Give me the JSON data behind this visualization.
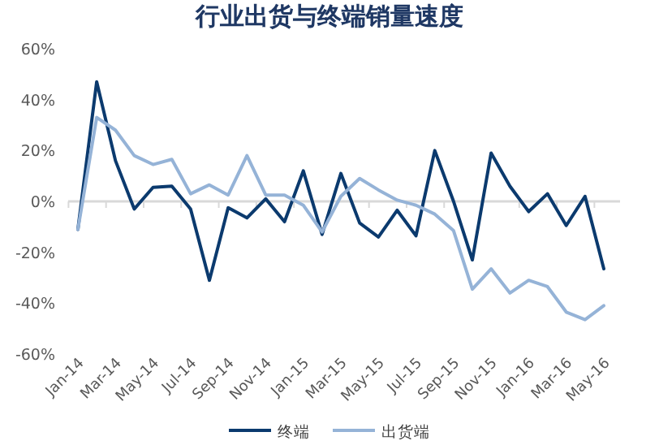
{
  "chart_data": {
    "type": "line",
    "title": "行业出货与终端销量速度",
    "categories": [
      "Jan-14",
      null,
      "Mar-14",
      null,
      "May-14",
      null,
      "Jul-14",
      null,
      "Sep-14",
      null,
      "Nov-14",
      null,
      "Jan-15",
      null,
      "Mar-15",
      null,
      "May-15",
      null,
      "Jul-15",
      null,
      "Sep-15",
      null,
      "Nov-15",
      null,
      "Jan-16",
      null,
      "Mar-16",
      null,
      "May-16"
    ],
    "series": [
      {
        "name": "终端",
        "color": "#0b3a6e",
        "values": [
          -11,
          47,
          16,
          -3,
          5.5,
          6,
          -3,
          -31,
          -2.5,
          -6.5,
          1,
          -8,
          12,
          -13,
          11,
          -8.5,
          -14,
          -3.5,
          -13.5,
          20,
          0,
          -23,
          19,
          6,
          -4,
          3,
          -9.5,
          2,
          -26.5
        ]
      },
      {
        "name": "出货端",
        "color": "#95b3d7",
        "values": [
          -11,
          33,
          28,
          18,
          14.5,
          16.5,
          3,
          6.5,
          2.5,
          18,
          2.5,
          2.5,
          -1.5,
          -12,
          2,
          9,
          4.5,
          0.5,
          -1.5,
          -5,
          -11.5,
          -34.5,
          -26.5,
          -36,
          -31,
          -33.5,
          -43.5,
          -46.5,
          -41
        ]
      }
    ],
    "ylim": [
      -60,
      60
    ],
    "yticks": [
      {
        "value": -60,
        "label": "-60%"
      },
      {
        "value": -40,
        "label": "-40%"
      },
      {
        "value": -20,
        "label": "-20%"
      },
      {
        "value": 0,
        "label": "0%"
      },
      {
        "value": 20,
        "label": "20%"
      },
      {
        "value": 40,
        "label": "40%"
      },
      {
        "value": 60,
        "label": "60%"
      }
    ],
    "legend": "bottom",
    "marker": "none",
    "line_style": "solid"
  }
}
